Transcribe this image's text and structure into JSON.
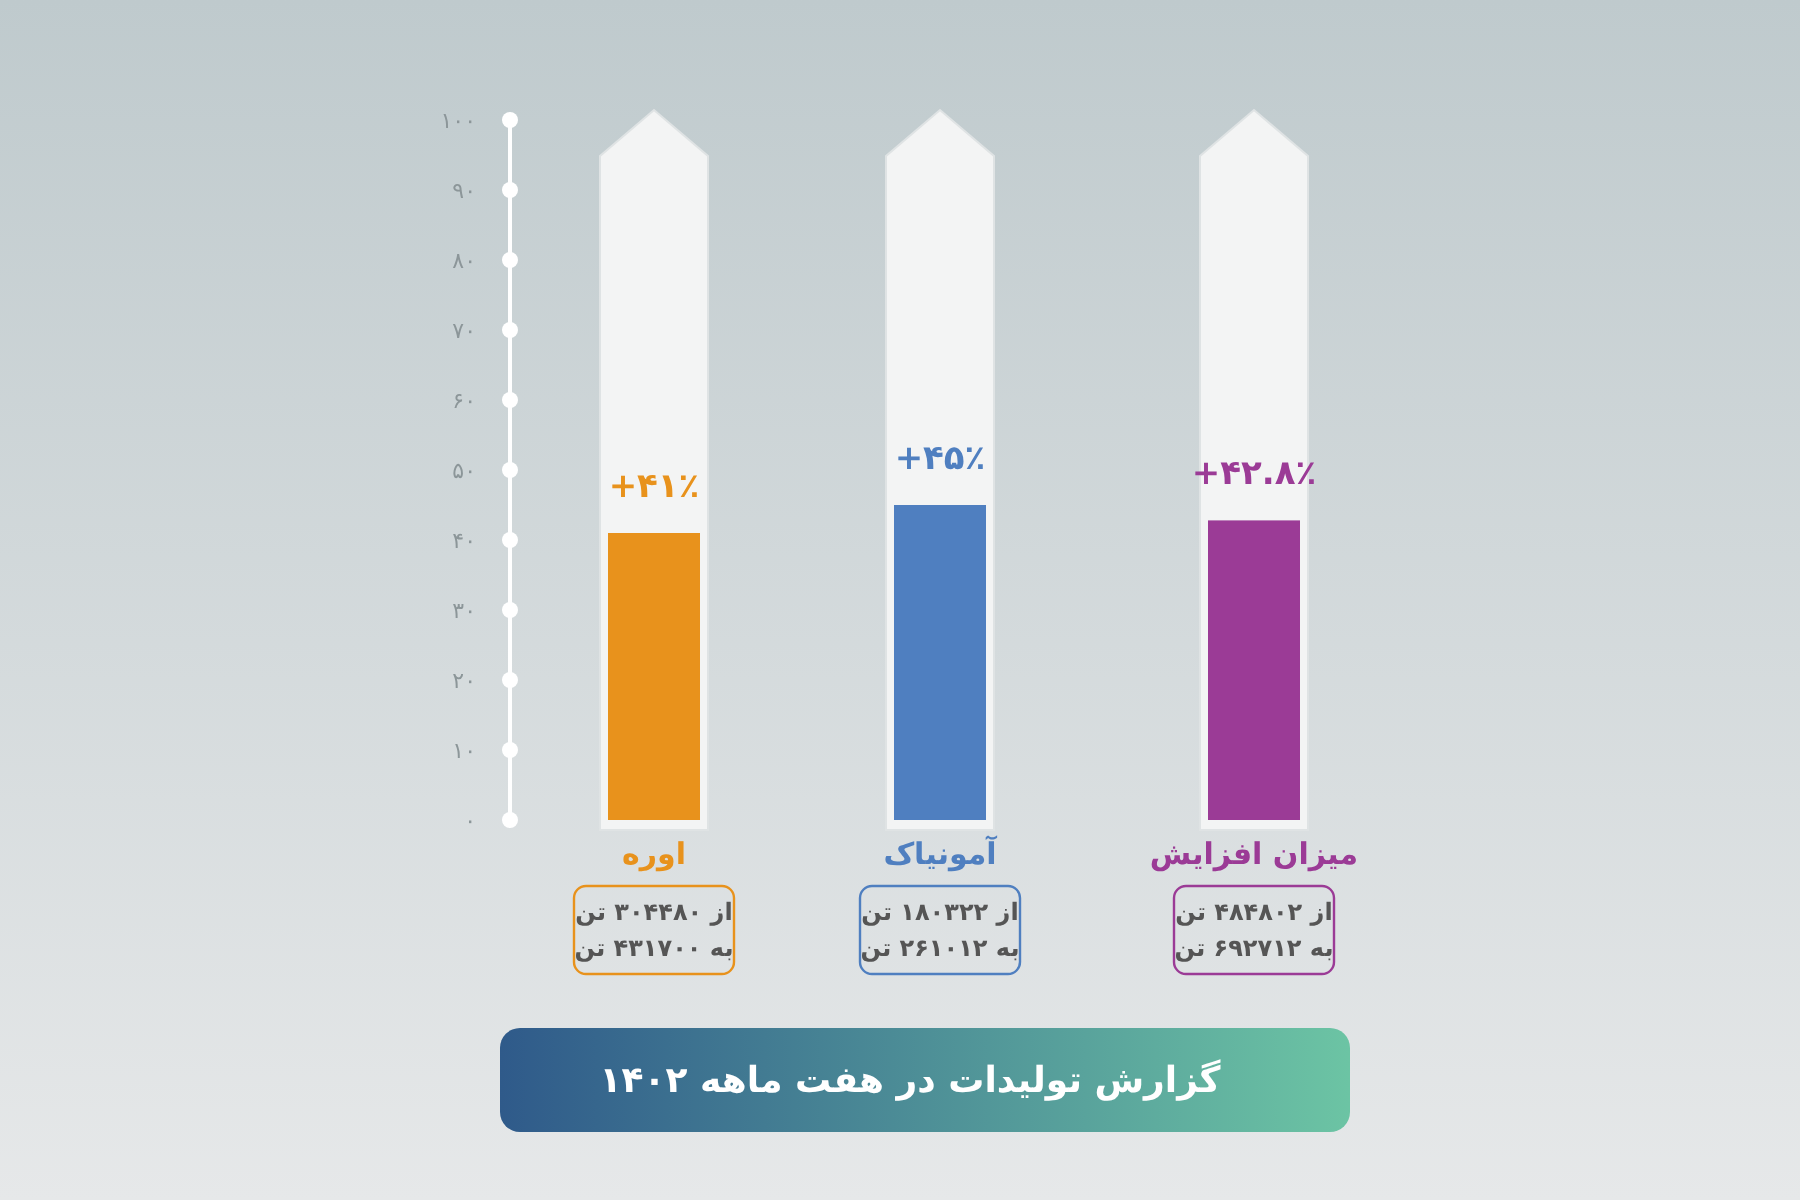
{
  "chart_data": {
    "type": "bar",
    "title": "گزارش تولیدات در هفت ماهه ۱۴۰۲",
    "categories": [
      "اوره",
      "آمونیاک",
      "میزان افزایش"
    ],
    "values": [
      41,
      45,
      42.8
    ],
    "colors": [
      "#e8921c",
      "#4f7fc0",
      "#9b3b96"
    ],
    "value_labels": [
      "+۴۱٪",
      "+۴۵٪",
      "+۴۲.۸٪"
    ],
    "ylim": [
      0,
      100
    ],
    "yticks": [
      {
        "value": 0,
        "label": "۰"
      },
      {
        "value": 10,
        "label": "۱۰"
      },
      {
        "value": 20,
        "label": "۲۰"
      },
      {
        "value": 30,
        "label": "۳۰"
      },
      {
        "value": 40,
        "label": "۴۰"
      },
      {
        "value": 50,
        "label": "۵۰"
      },
      {
        "value": 60,
        "label": "۶۰"
      },
      {
        "value": 70,
        "label": "۷۰"
      },
      {
        "value": 80,
        "label": "۸۰"
      },
      {
        "value": 90,
        "label": "۹۰"
      },
      {
        "value": 100,
        "label": "۱۰۰"
      }
    ],
    "annotations": [
      "از ۳۰۴۴۸۰ تن",
      "به ۴۳۱۷۰۰ تن",
      "از ۱۸۰۳۲۲ تن",
      "به ۲۶۱۰۱۲ تن",
      "از ۴۸۴۸۰۲ تن",
      "به ۶۹۲۷۱۲ تن"
    ]
  }
}
